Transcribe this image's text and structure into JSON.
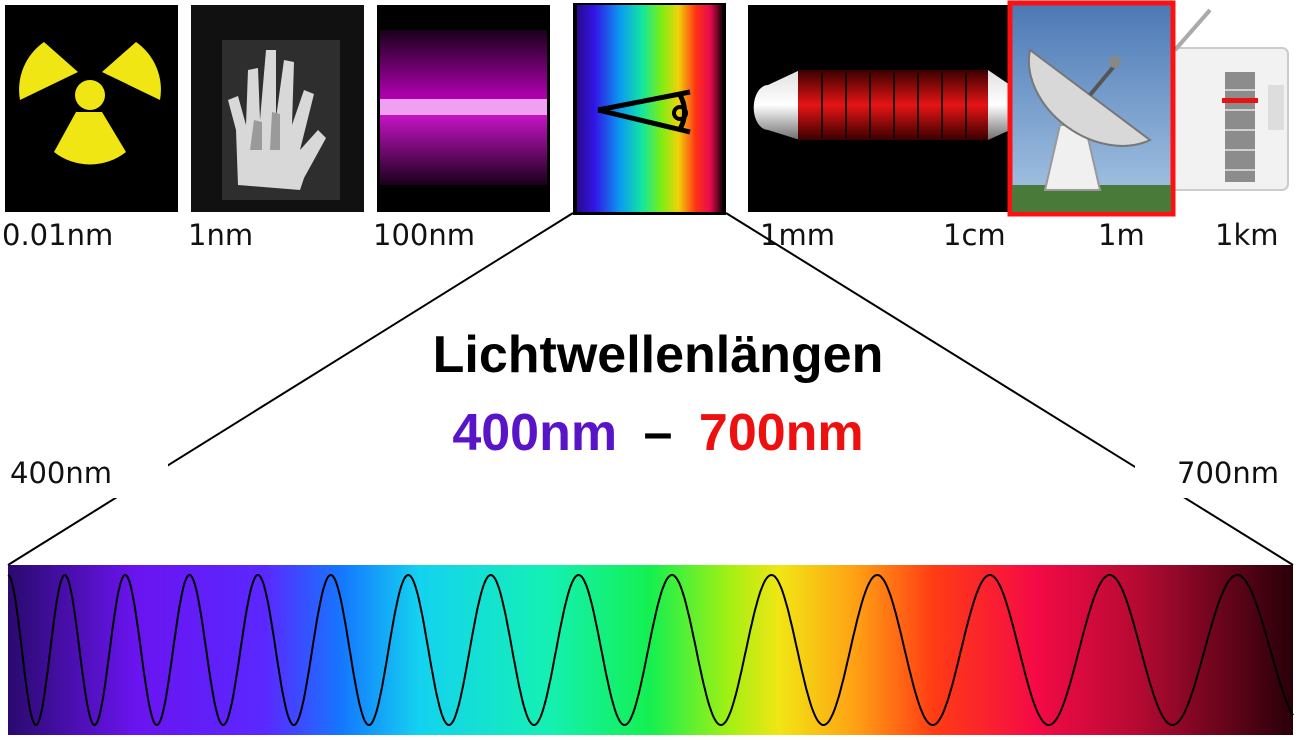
{
  "scale_labels": [
    "0.01nm",
    "1nm",
    "100nm",
    "1mm",
    "1cm",
    "1m",
    "1km"
  ],
  "title": "Lichtwellenlängen",
  "range": {
    "start": "400nm",
    "dash": "–",
    "end": "700nm"
  },
  "spectrum": {
    "left_label": "400nm",
    "right_label": "700nm"
  },
  "icons": [
    "radiation-icon",
    "xray-hand-icon",
    "ultraviolet-tube-icon",
    "eye-icon",
    "microwave-oven-icon",
    "radio-telescope-icon",
    "radio-icon"
  ],
  "colors": {
    "violet": "#5a14c8",
    "red": "#ee0f0f",
    "highlight_border": "#ff1010"
  }
}
